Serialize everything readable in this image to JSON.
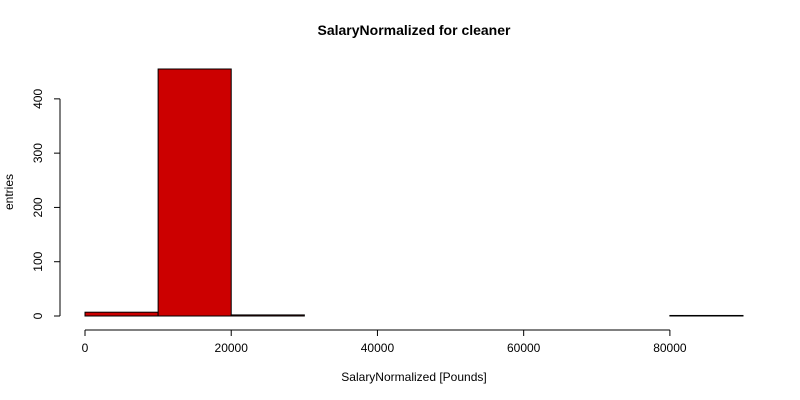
{
  "chart_data": {
    "type": "bar",
    "title": "SalaryNormalized for cleaner",
    "xlabel": "SalaryNormalized [Pounds]",
    "ylabel": "entries",
    "bins": [
      {
        "x0": 0,
        "x1": 10000,
        "value": 7
      },
      {
        "x0": 10000,
        "x1": 20000,
        "value": 455
      },
      {
        "x0": 20000,
        "x1": 30000,
        "value": 2
      },
      {
        "x0": 30000,
        "x1": 40000,
        "value": 0
      },
      {
        "x0": 40000,
        "x1": 50000,
        "value": 0
      },
      {
        "x0": 50000,
        "x1": 60000,
        "value": 0
      },
      {
        "x0": 60000,
        "x1": 70000,
        "value": 0
      },
      {
        "x0": 70000,
        "x1": 80000,
        "value": 0
      },
      {
        "x0": 80000,
        "x1": 90000,
        "value": 1
      }
    ],
    "xlim": [
      0,
      90000
    ],
    "ylim": [
      0,
      455
    ],
    "x_ticks": [
      0,
      20000,
      40000,
      60000,
      80000
    ],
    "y_ticks": [
      0,
      100,
      200,
      300,
      400
    ],
    "bar_color": "#cc0000",
    "grid": false,
    "legend": "none"
  }
}
